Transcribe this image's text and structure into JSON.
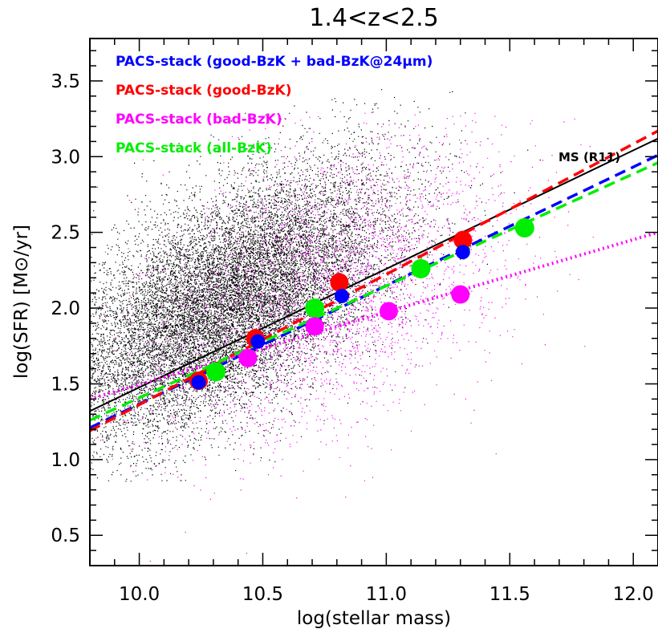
{
  "chart_data": {
    "type": "scatter",
    "title": "1.4<z<2.5",
    "xlabel": "log(stellar mass)",
    "ylabel": "log(SFR) [M⊙/yr]",
    "xlim": [
      9.8,
      12.1
    ],
    "ylim": [
      0.3,
      3.78
    ],
    "x_ticks": [
      "10.0",
      "10.5",
      "11.0",
      "11.5",
      "12.0"
    ],
    "y_ticks": [
      "0.5",
      "1.0",
      "1.5",
      "2.0",
      "2.5",
      "3.0",
      "3.5"
    ],
    "grid": false,
    "legend_position": "top-left",
    "annotation": "MS (R11)",
    "main_sequence": {
      "x": [
        9.8,
        12.1
      ],
      "y": [
        1.32,
        3.12
      ],
      "color": "#000000",
      "style": "solid"
    },
    "series": [
      {
        "name": "PACS-stack (good-BzK + bad-BzK@24μm)",
        "color": "#0000ff",
        "x": [
          10.24,
          10.48,
          10.82,
          11.31
        ],
        "y": [
          1.51,
          1.78,
          2.08,
          2.37
        ],
        "fit": {
          "x": [
            9.8,
            12.1
          ],
          "y": [
            1.21,
            3.01
          ]
        }
      },
      {
        "name": "PACS-stack (good-BzK)",
        "color": "#ff0000",
        "x": [
          10.24,
          10.47,
          10.81,
          11.31
        ],
        "y": [
          1.52,
          1.8,
          2.17,
          2.45
        ],
        "fit": {
          "x": [
            9.8,
            12.1
          ],
          "y": [
            1.19,
            3.17
          ]
        }
      },
      {
        "name": "PACS-stack (bad-BzK)",
        "color": "#ff00ff",
        "x": [
          10.44,
          10.71,
          11.01,
          11.3
        ],
        "y": [
          1.67,
          1.88,
          1.98,
          2.09
        ],
        "fit": {
          "x": [
            9.8,
            12.1
          ],
          "y": [
            1.4,
            2.5
          ]
        }
      },
      {
        "name": "PACS-stack (all-BzK)",
        "color": "#00ee00",
        "x": [
          10.31,
          10.71,
          11.14,
          11.56
        ],
        "y": [
          1.58,
          2.0,
          2.26,
          2.53
        ],
        "fit": {
          "x": [
            9.8,
            12.1
          ],
          "y": [
            1.26,
            2.96
          ]
        }
      }
    ],
    "background_samples": [
      {
        "color": "#000000",
        "count": 15000,
        "mean_x": 10.35,
        "sd_x": 0.34,
        "intercept": 1.76,
        "slope": 0.8,
        "sd_y": 0.36,
        "xlim": [
          9.8,
          11.95
        ],
        "ylim": [
          0.85,
          3.45
        ]
      },
      {
        "color": "#ff00ff",
        "count": 3500,
        "mean_x": 10.75,
        "sd_x": 0.38,
        "intercept": 1.72,
        "slope": 0.55,
        "sd_y": 0.45,
        "xlim": [
          9.8,
          11.9
        ],
        "ylim": [
          0.3,
          3.3
        ]
      }
    ]
  }
}
